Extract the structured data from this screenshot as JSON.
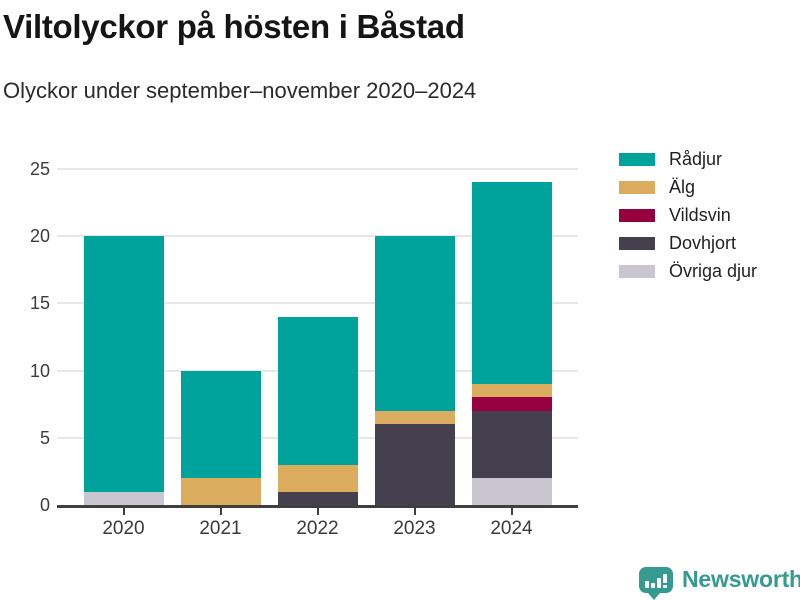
{
  "title": "Viltolyckor på hösten i Båstad",
  "subtitle": "Olyckor under september–november 2020–2024",
  "branding": {
    "logo_text": "Newsworthy",
    "logo_color": "#359a8f",
    "logo_icon": "bar-chart-speech-bubble"
  },
  "colors": {
    "background": "#ffffff",
    "gridline": "#e7e7e7",
    "axis": "#3f3f3f",
    "tick_text": "#3a3a3a"
  },
  "chart_data": {
    "type": "bar",
    "stacked": true,
    "title": "Viltolyckor på hösten i Båstad",
    "subtitle": "Olyckor under september–november 2020–2024",
    "categories": [
      "2020",
      "2021",
      "2022",
      "2023",
      "2024"
    ],
    "series": [
      {
        "name": "Rådjur",
        "color": "#00a39b",
        "values": [
          19,
          8,
          11,
          13,
          15
        ]
      },
      {
        "name": "Älg",
        "color": "#dbac5e",
        "values": [
          0,
          2,
          2,
          1,
          1
        ]
      },
      {
        "name": "Vildsvin",
        "color": "#97003f",
        "values": [
          0,
          0,
          0,
          0,
          1
        ]
      },
      {
        "name": "Dovhjort",
        "color": "#44404e",
        "values": [
          0,
          0,
          1,
          6,
          5
        ]
      },
      {
        "name": "Övriga djur",
        "color": "#c9c6d2",
        "values": [
          1,
          0,
          0,
          0,
          2
        ]
      }
    ],
    "stack_order_bottom_to_top": [
      "Övriga djur",
      "Dovhjort",
      "Vildsvin",
      "Älg",
      "Rådjur"
    ],
    "totals": [
      20,
      10,
      14,
      20,
      24
    ],
    "xlabel": "",
    "ylabel": "",
    "ylim": [
      0,
      25
    ],
    "yticks": [
      0,
      5,
      10,
      15,
      20,
      25
    ],
    "grid": "horizontal",
    "legend_position": "right"
  }
}
